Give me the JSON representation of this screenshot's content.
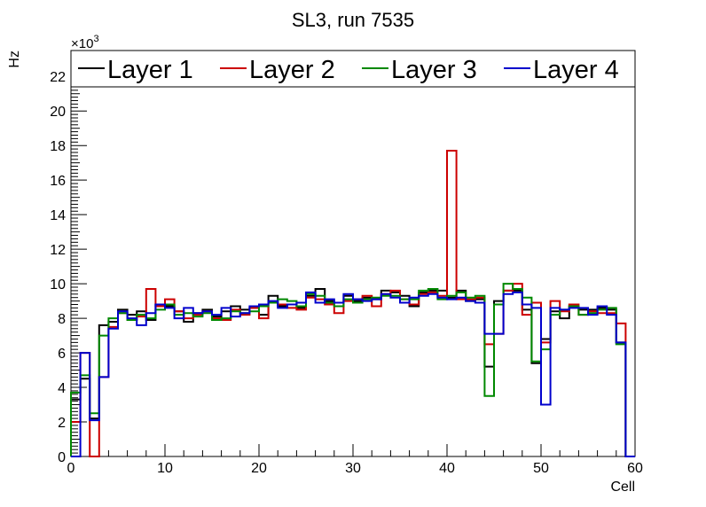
{
  "chart_data": {
    "type": "line",
    "title": "SL3, run 7535",
    "xlabel": "Cell",
    "ylabel": "Hz",
    "y_multiplier_label": "×10",
    "y_multiplier_exp": "3",
    "xlim": [
      0,
      60
    ],
    "ylim": [
      0,
      23.5
    ],
    "x_ticks": [
      "0",
      "10",
      "20",
      "30",
      "40",
      "50",
      "60"
    ],
    "y_ticks": [
      "0",
      "2",
      "4",
      "6",
      "8",
      "10",
      "12",
      "14",
      "16",
      "18",
      "20",
      "22"
    ],
    "grid": false,
    "legend_position": "top",
    "bin_edges_start": 0,
    "bin_width": 1,
    "series": [
      {
        "name": "Layer 1",
        "color": "#000000",
        "values": [
          3.3,
          4.5,
          2.2,
          7.6,
          7.8,
          8.5,
          8.2,
          8.4,
          7.9,
          8.8,
          8.7,
          8.4,
          7.8,
          8.3,
          8.5,
          8.1,
          8.4,
          8.7,
          8.5,
          8.6,
          8.2,
          9.3,
          8.7,
          8.8,
          8.6,
          9.3,
          9.7,
          9.0,
          8.9,
          9.3,
          9.0,
          9.2,
          9.1,
          9.6,
          9.5,
          9.3,
          8.7,
          9.5,
          9.6,
          9.6,
          9.2,
          9.6,
          9.0,
          9.1,
          5.2,
          9.0,
          9.6,
          9.6,
          8.5,
          5.4,
          6.8,
          8.4,
          8.0,
          8.7,
          8.5,
          8.5,
          8.6,
          8.5,
          6.6,
          0.0
        ],
        "label_values": []
      },
      {
        "name": "Layer 2",
        "color": "#cc0000",
        "values": [
          2.0,
          6.0,
          0.0,
          4.6,
          7.5,
          8.3,
          7.9,
          8.1,
          9.7,
          8.7,
          9.1,
          8.4,
          8.0,
          8.2,
          8.4,
          8.0,
          7.9,
          8.5,
          8.2,
          8.6,
          8.0,
          8.9,
          8.8,
          8.6,
          8.5,
          9.2,
          9.1,
          8.8,
          8.3,
          9.0,
          9.1,
          9.3,
          8.7,
          9.4,
          9.6,
          9.1,
          8.8,
          9.4,
          9.5,
          9.3,
          17.7,
          9.1,
          9.1,
          9.2,
          6.5,
          7.1,
          9.6,
          10.0,
          8.2,
          8.9,
          6.6,
          9.0,
          8.4,
          8.8,
          8.2,
          8.4,
          8.3,
          8.3,
          7.7,
          0.0
        ],
        "label_values": []
      },
      {
        "name": "Layer 3",
        "color": "#008800",
        "values": [
          3.7,
          4.7,
          2.5,
          7.0,
          8.0,
          8.3,
          7.9,
          8.2,
          8.0,
          8.5,
          8.8,
          8.2,
          8.3,
          8.1,
          8.3,
          7.9,
          8.0,
          8.4,
          8.3,
          8.4,
          8.7,
          8.9,
          9.1,
          9.0,
          8.7,
          9.4,
          9.3,
          8.9,
          8.7,
          9.1,
          8.9,
          9.1,
          9.2,
          9.3,
          9.3,
          9.1,
          9.1,
          9.6,
          9.7,
          9.1,
          9.3,
          9.5,
          9.2,
          9.3,
          3.5,
          8.8,
          10.0,
          9.7,
          9.2,
          5.5,
          6.2,
          8.2,
          8.5,
          8.7,
          8.2,
          8.3,
          8.5,
          8.6,
          6.5,
          0.0
        ],
        "label_values": []
      },
      {
        "name": "Layer 4",
        "color": "#0000cc",
        "values": [
          0.0,
          6.0,
          2.1,
          4.6,
          7.4,
          8.4,
          8.0,
          7.6,
          8.3,
          8.8,
          8.6,
          8.0,
          8.6,
          8.3,
          8.4,
          8.2,
          8.6,
          8.1,
          8.3,
          8.7,
          8.8,
          9.0,
          8.6,
          8.8,
          8.9,
          9.5,
          8.9,
          9.1,
          8.9,
          9.4,
          9.1,
          9.0,
          9.1,
          9.4,
          9.2,
          8.9,
          9.2,
          9.3,
          9.4,
          9.2,
          9.1,
          9.2,
          9.0,
          8.9,
          7.1,
          7.1,
          9.4,
          9.5,
          8.8,
          8.6,
          3.0,
          8.6,
          8.5,
          8.6,
          8.6,
          8.2,
          8.7,
          8.2,
          6.6,
          0.0
        ],
        "label_values": []
      }
    ]
  }
}
